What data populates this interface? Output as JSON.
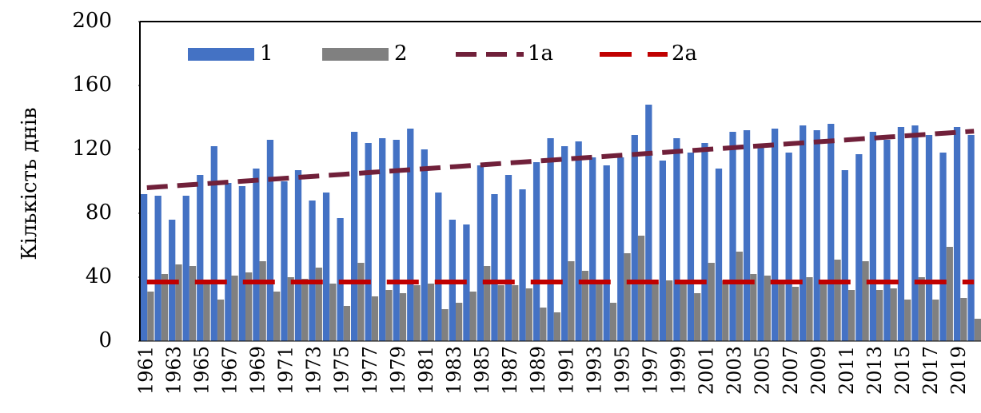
{
  "chart_data": {
    "type": "bar",
    "y_label": "Кількість днів",
    "categories": [
      "1961",
      null,
      "1963",
      null,
      "1965",
      null,
      "1967",
      null,
      "1969",
      null,
      "1971",
      null,
      "1973",
      null,
      "1975",
      null,
      "1977",
      null,
      "1979",
      null,
      "1981",
      null,
      "1983",
      null,
      "1985",
      null,
      "1987",
      null,
      "1989",
      null,
      "1991",
      null,
      "1993",
      null,
      "1995",
      null,
      "1997",
      null,
      "1999",
      null,
      "2001",
      null,
      "2003",
      null,
      "2005",
      null,
      "2007",
      null,
      "2009",
      null,
      "2011",
      null,
      "2013",
      null,
      "2015",
      null,
      "2017",
      null,
      "2019",
      null
    ],
    "ylim": [
      0,
      200
    ],
    "yticks": [
      0,
      40,
      80,
      120,
      160,
      200
    ],
    "series": [
      {
        "name": "1",
        "color": "#4472c4",
        "kind": "bar",
        "values": [
          92,
          91,
          76,
          91,
          104,
          122,
          99,
          97,
          108,
          126,
          100,
          107,
          88,
          93,
          77,
          131,
          124,
          127,
          126,
          133,
          120,
          93,
          76,
          73,
          110,
          92,
          104,
          95,
          112,
          127,
          122,
          125,
          115,
          110,
          115,
          129,
          148,
          113,
          127,
          118,
          124,
          108,
          131,
          132,
          122,
          133,
          118,
          135,
          132,
          136,
          107,
          117,
          131,
          126,
          134,
          135,
          129,
          118,
          134,
          129
        ]
      },
      {
        "name": "2",
        "color": "#808080",
        "kind": "bar",
        "values": [
          31,
          42,
          48,
          47,
          36,
          26,
          41,
          43,
          50,
          31,
          40,
          39,
          46,
          36,
          22,
          49,
          28,
          32,
          30,
          35,
          36,
          20,
          24,
          31,
          47,
          35,
          35,
          33,
          21,
          18,
          50,
          44,
          36,
          24,
          55,
          66,
          37,
          38,
          38,
          30,
          49,
          38,
          56,
          42,
          41,
          37,
          34,
          40,
          37,
          51,
          32,
          50,
          32,
          33,
          26,
          40,
          26,
          59,
          27,
          14
        ]
      },
      {
        "name": "1a",
        "color": "#70203a",
        "kind": "line",
        "values": [
          96.0,
          96.6,
          97.2,
          97.8,
          98.4,
          99.0,
          99.6,
          100.2,
          100.8,
          101.4,
          102.0,
          102.6,
          103.2,
          103.8,
          104.4,
          105.0,
          105.6,
          106.2,
          106.8,
          107.4,
          108.0,
          108.6,
          109.2,
          109.8,
          110.4,
          111.0,
          111.6,
          112.2,
          112.8,
          113.4,
          114.0,
          114.6,
          115.2,
          115.8,
          116.4,
          117.0,
          117.6,
          118.2,
          118.8,
          119.4,
          120.0,
          120.6,
          121.2,
          121.8,
          122.4,
          123.0,
          123.6,
          124.2,
          124.8,
          125.4,
          126.0,
          126.6,
          127.2,
          127.8,
          128.4,
          129.0,
          129.6,
          130.2,
          130.8,
          131.4
        ]
      },
      {
        "name": "2a",
        "color": "#c00000",
        "kind": "line",
        "values": [
          37,
          37,
          37,
          37,
          37,
          37,
          37,
          37,
          37,
          37,
          37,
          37,
          37,
          37,
          37,
          37,
          37,
          37,
          37,
          37,
          37,
          37,
          37,
          37,
          37,
          37,
          37,
          37,
          37,
          37,
          37,
          37,
          37,
          37,
          37,
          37,
          37,
          37,
          37,
          37,
          37,
          37,
          37,
          37,
          37,
          37,
          37,
          37,
          37,
          37,
          37,
          37,
          37,
          37,
          37,
          37,
          37,
          37,
          37,
          37
        ]
      }
    ]
  }
}
